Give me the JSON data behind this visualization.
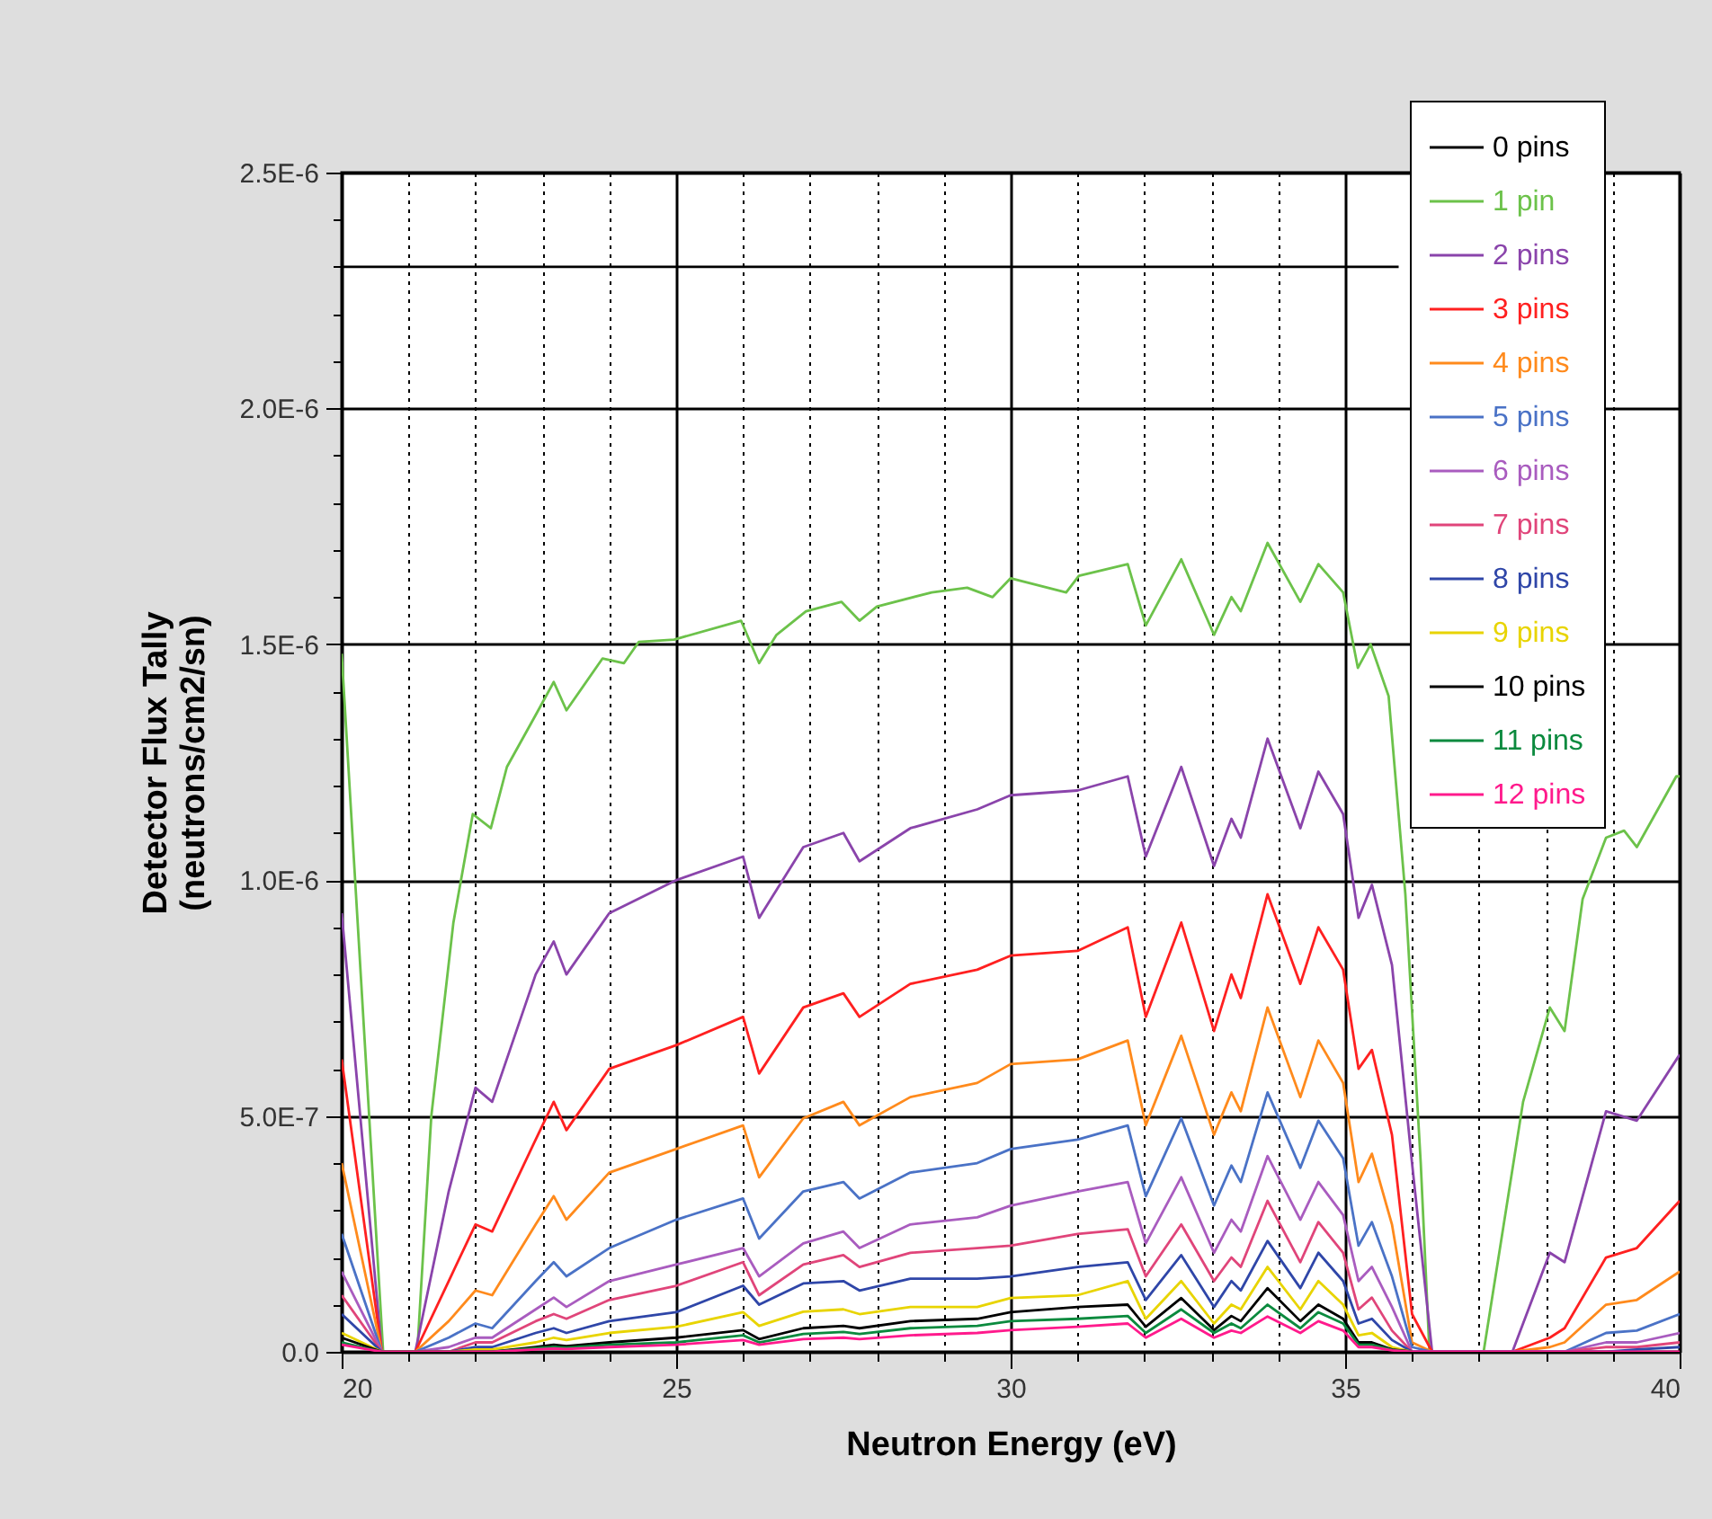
{
  "chart_data": {
    "type": "line",
    "xlabel": "Neutron Energy (eV)",
    "ylabel": "Detector Flux Tally\n(neutrons/cm2/sn)",
    "xlim": [
      20,
      40
    ],
    "xticks": [
      20,
      {
        "value": 21,
        "label": null
      },
      {
        "value": 22,
        "label": null
      },
      {
        "value": 23,
        "label": null
      },
      {
        "value": 24,
        "label": null
      },
      25,
      {
        "value": 26,
        "label": null
      },
      {
        "value": 27,
        "label": null
      },
      {
        "value": 28,
        "label": null
      },
      {
        "value": 29,
        "label": null
      },
      30,
      {
        "value": 31,
        "label": null
      },
      {
        "value": 32,
        "label": null
      },
      {
        "value": 33,
        "label": null
      },
      {
        "value": 34,
        "label": null
      },
      35,
      {
        "value": 36,
        "label": null
      },
      {
        "value": 37,
        "label": null
      },
      {
        "value": 38,
        "label": null
      },
      {
        "value": 39,
        "label": null
      },
      40
    ],
    "ylim": [
      0,
      2.5e-06
    ],
    "yticks": [
      {
        "value": 0,
        "label": "0.0"
      },
      {
        "value": 1e-07,
        "label": null
      },
      {
        "value": 2e-07,
        "label": null
      },
      {
        "value": 3e-07,
        "label": null
      },
      {
        "value": 4e-07,
        "label": null
      },
      {
        "value": 5e-07,
        "label": "5.0E-7"
      },
      {
        "value": 6e-07,
        "label": null
      },
      {
        "value": 7e-07,
        "label": null
      },
      {
        "value": 8e-07,
        "label": null
      },
      {
        "value": 9e-07,
        "label": null
      },
      {
        "value": 1e-06,
        "label": "1.0E-6"
      },
      {
        "value": 1.1e-06,
        "label": null
      },
      {
        "value": 1.2e-06,
        "label": null
      },
      {
        "value": 1.3e-06,
        "label": null
      },
      {
        "value": 1.4e-06,
        "label": null
      },
      {
        "value": 1.5e-06,
        "label": "1.5E-6"
      },
      {
        "value": 1.6e-06,
        "label": null
      },
      {
        "value": 1.7e-06,
        "label": null
      },
      {
        "value": 1.8e-06,
        "label": null
      },
      {
        "value": 1.9e-06,
        "label": null
      },
      {
        "value": 2e-06,
        "label": "2.0E-6"
      },
      {
        "value": 2.1e-06,
        "label": null
      },
      {
        "value": 2.2e-06,
        "label": null
      },
      {
        "value": 2.3e-06,
        "label": null
      },
      {
        "value": 2.4e-06,
        "label": null
      },
      {
        "value": 2.5e-06,
        "label": "2.5E-6"
      }
    ],
    "grid": true,
    "legend": "top right",
    "x": [
      20,
      20.6,
      21.1,
      21.6,
      22.0,
      22.25,
      22.9,
      23.17,
      23.36,
      24.0,
      25.0,
      26.0,
      26.24,
      26.9,
      27.5,
      27.74,
      28.5,
      29.5,
      30.0,
      31.0,
      31.75,
      32.02,
      32.55,
      33.04,
      33.3,
      33.44,
      33.84,
      34.33,
      34.6,
      34.97,
      35.2,
      35.4,
      35.7,
      36.0,
      36.3,
      37.0,
      37.5,
      38.06,
      38.28,
      38.9,
      39.36,
      40
    ],
    "series": [
      {
        "name": "0 pins",
        "color": "#000000",
        "x": [
          20,
          24,
          28,
          32,
          35.8
        ],
        "values": [
          2.3e-06,
          2.3e-06,
          2.3e-06,
          2.3e-06,
          2.3e-06
        ]
      },
      {
        "name": "1 pin",
        "color": "#6cc24a",
        "x": [
          20,
          20.62,
          21.13,
          21.34,
          21.67,
          21.96,
          22.23,
          22.47,
          22.9,
          23.17,
          23.36,
          23.9,
          24.22,
          24.44,
          24.97,
          25.97,
          26.24,
          26.5,
          26.94,
          27.47,
          27.74,
          28.0,
          28.82,
          29.35,
          29.73,
          30.0,
          30.83,
          31.02,
          31.75,
          32.02,
          32.55,
          33.04,
          33.3,
          33.44,
          33.84,
          34.33,
          34.6,
          34.97,
          35.19,
          35.38,
          35.65,
          35.9,
          36.13,
          36.26,
          37.07,
          37.66,
          38.06,
          38.28,
          38.55,
          38.9,
          39.17,
          39.36,
          39.95,
          40
        ],
        "values": [
          1.48e-06,
          0,
          0,
          5e-07,
          9.1e-07,
          1.14e-06,
          1.11e-06,
          1.24e-06,
          1.35e-06,
          1.42e-06,
          1.36e-06,
          1.47e-06,
          1.46e-06,
          1.505e-06,
          1.51e-06,
          1.55e-06,
          1.46e-06,
          1.52e-06,
          1.57e-06,
          1.59e-06,
          1.55e-06,
          1.58e-06,
          1.61e-06,
          1.62e-06,
          1.6e-06,
          1.64e-06,
          1.61e-06,
          1.645e-06,
          1.67e-06,
          1.54e-06,
          1.68e-06,
          1.52e-06,
          1.6e-06,
          1.57e-06,
          1.715e-06,
          1.59e-06,
          1.67e-06,
          1.61e-06,
          1.45e-06,
          1.5e-06,
          1.39e-06,
          9.7e-07,
          4e-07,
          0,
          0,
          5.3e-07,
          7.3e-07,
          6.8e-07,
          9.6e-07,
          1.09e-06,
          1.105e-06,
          1.07e-06,
          1.22e-06,
          1.22e-06
        ]
      },
      {
        "name": "2 pins",
        "color": "#8a44ab",
        "values": [
          9.3e-07,
          0,
          0,
          3.4e-07,
          5.6e-07,
          5.3e-07,
          8e-07,
          8.7e-07,
          8e-07,
          9.3e-07,
          1e-06,
          1.05e-06,
          9.2e-07,
          1.07e-06,
          1.1e-06,
          1.04e-06,
          1.11e-06,
          1.15e-06,
          1.18e-06,
          1.19e-06,
          1.22e-06,
          1.05e-06,
          1.24e-06,
          1.03e-06,
          1.13e-06,
          1.09e-06,
          1.3e-06,
          1.11e-06,
          1.23e-06,
          1.14e-06,
          9.2e-07,
          9.9e-07,
          8.2e-07,
          4e-07,
          0,
          0,
          0,
          2.1e-07,
          1.9e-07,
          5.1e-07,
          4.9e-07,
          6.3e-07
        ]
      },
      {
        "name": "3 pins",
        "color": "#ff2020",
        "values": [
          6.2e-07,
          0,
          0,
          1.5e-07,
          2.7e-07,
          2.55e-07,
          4.5e-07,
          5.3e-07,
          4.7e-07,
          6e-07,
          6.5e-07,
          7.1e-07,
          5.9e-07,
          7.3e-07,
          7.6e-07,
          7.1e-07,
          7.8e-07,
          8.1e-07,
          8.4e-07,
          8.5e-07,
          9e-07,
          7.1e-07,
          9.1e-07,
          6.8e-07,
          8e-07,
          7.5e-07,
          9.7e-07,
          7.8e-07,
          9e-07,
          8.1e-07,
          6e-07,
          6.4e-07,
          4.6e-07,
          8e-08,
          0,
          0,
          0,
          3e-08,
          5e-08,
          2e-07,
          2.2e-07,
          3.2e-07
        ]
      },
      {
        "name": "4 pins",
        "color": "#ff8a1c",
        "values": [
          4e-07,
          0,
          0,
          6.5e-08,
          1.3e-07,
          1.2e-07,
          2.7e-07,
          3.3e-07,
          2.8e-07,
          3.8e-07,
          4.3e-07,
          4.8e-07,
          3.7e-07,
          4.95e-07,
          5.3e-07,
          4.8e-07,
          5.4e-07,
          5.7e-07,
          6.1e-07,
          6.2e-07,
          6.6e-07,
          4.8e-07,
          6.7e-07,
          4.6e-07,
          5.5e-07,
          5.1e-07,
          7.3e-07,
          5.4e-07,
          6.6e-07,
          5.7e-07,
          3.6e-07,
          4.2e-07,
          2.7e-07,
          2e-08,
          0,
          0,
          0,
          1e-08,
          2e-08,
          1e-07,
          1.1e-07,
          1.7e-07
        ]
      },
      {
        "name": "5 pins",
        "color": "#4a72c6",
        "values": [
          2.5e-07,
          0,
          0,
          3e-08,
          6e-08,
          5e-08,
          1.5e-07,
          1.9e-07,
          1.6e-07,
          2.2e-07,
          2.8e-07,
          3.25e-07,
          2.4e-07,
          3.4e-07,
          3.6e-07,
          3.25e-07,
          3.8e-07,
          4e-07,
          4.3e-07,
          4.5e-07,
          4.8e-07,
          3.3e-07,
          4.95e-07,
          3.1e-07,
          3.95e-07,
          3.6e-07,
          5.5e-07,
          3.9e-07,
          4.9e-07,
          4.1e-07,
          2.25e-07,
          2.75e-07,
          1.6e-07,
          1e-08,
          0,
          0,
          0,
          0,
          0,
          4e-08,
          4.5e-08,
          8e-08
        ]
      },
      {
        "name": "6 pins",
        "color": "#a95cbf",
        "values": [
          1.7e-07,
          0,
          0,
          1e-08,
          3e-08,
          3e-08,
          9e-08,
          1.15e-07,
          9.5e-08,
          1.5e-07,
          1.85e-07,
          2.2e-07,
          1.6e-07,
          2.3e-07,
          2.55e-07,
          2.2e-07,
          2.7e-07,
          2.85e-07,
          3.1e-07,
          3.4e-07,
          3.6e-07,
          2.3e-07,
          3.7e-07,
          2.1e-07,
          2.8e-07,
          2.55e-07,
          4.15e-07,
          2.8e-07,
          3.6e-07,
          2.9e-07,
          1.5e-07,
          1.8e-07,
          9.5e-08,
          0,
          0,
          0,
          0,
          0,
          0,
          2e-08,
          2e-08,
          4e-08
        ]
      },
      {
        "name": "7 pins",
        "color": "#e0457a",
        "values": [
          1.2e-07,
          0,
          0,
          0,
          2e-08,
          2e-08,
          6.5e-08,
          8e-08,
          7e-08,
          1.1e-07,
          1.4e-07,
          1.9e-07,
          1.2e-07,
          1.85e-07,
          2.05e-07,
          1.8e-07,
          2.1e-07,
          2.2e-07,
          2.25e-07,
          2.5e-07,
          2.6e-07,
          1.6e-07,
          2.7e-07,
          1.5e-07,
          2e-07,
          1.8e-07,
          3.2e-07,
          1.9e-07,
          2.75e-07,
          2.1e-07,
          9e-08,
          1.15e-07,
          4.5e-08,
          0,
          0,
          0,
          0,
          0,
          0,
          1e-08,
          1e-08,
          2e-08
        ]
      },
      {
        "name": "8 pins",
        "color": "#2f46a8",
        "values": [
          8e-08,
          0,
          0,
          0,
          1e-08,
          1e-08,
          4e-08,
          5e-08,
          4e-08,
          6.5e-08,
          8.4e-08,
          1.4e-07,
          1e-07,
          1.45e-07,
          1.5e-07,
          1.3e-07,
          1.55e-07,
          1.55e-07,
          1.6e-07,
          1.8e-07,
          1.9e-07,
          1.1e-07,
          2.05e-07,
          9.5e-08,
          1.5e-07,
          1.3e-07,
          2.35e-07,
          1.35e-07,
          2.1e-07,
          1.5e-07,
          6e-08,
          7e-08,
          2.5e-08,
          0,
          0,
          0,
          0,
          0,
          0,
          0,
          5e-09,
          1e-08
        ]
      },
      {
        "name": "9 pins",
        "color": "#e8d400",
        "values": [
          4e-08,
          0,
          0,
          0,
          5e-09,
          5e-09,
          2e-08,
          3e-08,
          2.5e-08,
          4e-08,
          5.3e-08,
          8.4e-08,
          5.5e-08,
          8.5e-08,
          9e-08,
          8e-08,
          9.5e-08,
          9.5e-08,
          1.14e-07,
          1.2e-07,
          1.5e-07,
          7e-08,
          1.5e-07,
          6e-08,
          1e-07,
          9e-08,
          1.8e-07,
          9e-08,
          1.5e-07,
          1e-07,
          3.5e-08,
          4e-08,
          1e-08,
          0,
          null,
          null,
          null,
          null,
          null,
          null,
          null,
          null
        ]
      },
      {
        "name": "10 pins",
        "color": "#000000",
        "values": [
          3e-08,
          0,
          0,
          0,
          0,
          0,
          1e-08,
          1.5e-08,
          1.2e-08,
          2e-08,
          3e-08,
          4.6e-08,
          2.7e-08,
          5e-08,
          5.5e-08,
          5e-08,
          6.5e-08,
          7e-08,
          8.4e-08,
          9.5e-08,
          1e-07,
          5.3e-08,
          1.14e-07,
          4.6e-08,
          7.6e-08,
          6.5e-08,
          1.35e-07,
          6.5e-08,
          1e-07,
          7e-08,
          2e-08,
          2e-08,
          5e-09,
          0,
          null,
          null,
          null,
          null,
          null,
          null,
          null,
          null
        ]
      },
      {
        "name": "11 pins",
        "color": "#0b8a3e",
        "values": [
          2e-08,
          0,
          0,
          0,
          0,
          0,
          8e-09,
          1e-08,
          9e-09,
          1.5e-08,
          2e-08,
          3.5e-08,
          2e-08,
          3.8e-08,
          4.2e-08,
          3.8e-08,
          5e-08,
          5.5e-08,
          6.5e-08,
          7e-08,
          7.6e-08,
          4e-08,
          9e-08,
          4e-08,
          6e-08,
          5e-08,
          1e-07,
          5e-08,
          8.4e-08,
          6e-08,
          1.5e-08,
          1.5e-08,
          4e-09,
          0,
          null,
          null,
          null,
          null,
          null,
          null,
          null,
          null
        ]
      },
      {
        "name": "12 pins",
        "color": "#ff1a8c",
        "values": [
          1.5e-08,
          0,
          0,
          0,
          0,
          0,
          5e-09,
          7e-09,
          6e-09,
          1e-08,
          1.5e-08,
          2.5e-08,
          1.5e-08,
          2.7e-08,
          3e-08,
          2.7e-08,
          3.5e-08,
          4e-08,
          4.6e-08,
          5.3e-08,
          6e-08,
          3e-08,
          7e-08,
          3e-08,
          4.5e-08,
          4e-08,
          7.5e-08,
          4e-08,
          6.5e-08,
          4.5e-08,
          1e-08,
          1e-08,
          3e-09,
          0,
          0,
          0,
          0,
          0,
          0,
          0,
          0,
          0
        ]
      }
    ]
  }
}
